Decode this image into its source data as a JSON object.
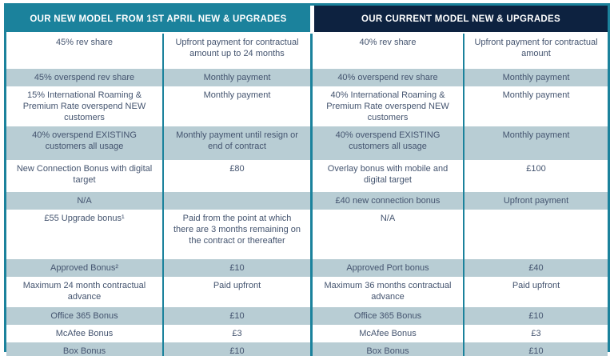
{
  "colors": {
    "teal_accent": "#1b829c",
    "navy_header": "#0d2240",
    "shaded_row": "#b8cdd4",
    "body_text": "#44546f"
  },
  "headers": {
    "left": "OUR NEW MODEL FROM 1ST APRIL NEW & UPGRADES",
    "right": "OUR CURRENT MODEL NEW & UPGRADES"
  },
  "rows": [
    {
      "cells": [
        "45% rev share",
        "Upfront payment for contractual amount up to 24 months",
        "40% rev share",
        "Upfront payment for contractual amount"
      ]
    },
    {
      "cells": [
        "45% overspend rev share",
        "Monthly payment",
        "40% overspend rev share",
        "Monthly payment"
      ]
    },
    {
      "cells": [
        "15% International Roaming & Premium Rate overspend NEW customers",
        "Monthly payment",
        "40% International Roaming & Premium Rate overspend NEW customers",
        "Monthly payment"
      ]
    },
    {
      "cells": [
        "40% overspend EXISTING customers all usage",
        "Monthly payment until resign or end of contract",
        "40% overspend EXISTING customers all usage",
        "Monthly payment"
      ]
    },
    {
      "cells": [
        "New Connection Bonus with digital target",
        "£80",
        "Overlay bonus with mobile and digital target",
        "£100"
      ]
    },
    {
      "cells": [
        "N/A",
        "",
        "£40 new connection bonus",
        "Upfront payment"
      ]
    },
    {
      "cells": [
        "£55 Upgrade bonus¹",
        "Paid from the point at which there are 3 months remaining on the contract or thereafter",
        "N/A",
        ""
      ]
    },
    {
      "cells": [
        "Approved Bonus²",
        "£10",
        "Approved Port bonus",
        "£40"
      ]
    },
    {
      "cells": [
        "Maximum 24 month contractual advance",
        "Paid upfront",
        "Maximum 36 months contractual advance",
        "Paid upfront"
      ]
    },
    {
      "cells": [
        "Office 365 Bonus",
        "£10",
        "Office 365 Bonus",
        "£10"
      ]
    },
    {
      "cells": [
        "McAfee Bonus",
        "£3",
        "McAfee Bonus",
        "£3"
      ]
    },
    {
      "cells": [
        "Box Bonus",
        "£10",
        "Box Bonus",
        "£10"
      ]
    }
  ]
}
